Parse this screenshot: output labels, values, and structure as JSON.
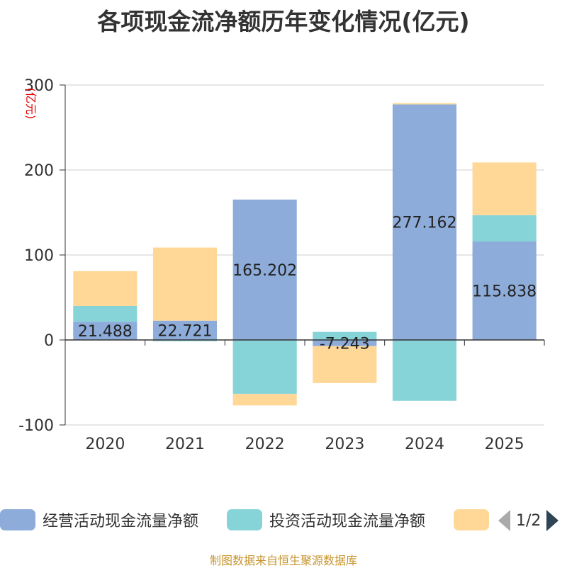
{
  "title": "各项现金流净额历年变化情况(亿元)",
  "source": "制图数据来自恒生聚源数据库",
  "legend_pager": "1/2",
  "chart_data": {
    "type": "bar",
    "stacked": true,
    "title": "各项现金流净额历年变化情况(亿元)",
    "ylabel": "(亿元)",
    "ylim": [
      -100,
      300
    ],
    "yticks": [
      -100,
      0,
      100,
      200,
      300
    ],
    "grid": true,
    "legend_position": "bottom",
    "categories": [
      "2020",
      "2021",
      "2022",
      "2023",
      "2024",
      "2025"
    ],
    "series": [
      {
        "name": "经营活动现金流量净额",
        "color": "#8eacd9",
        "values": [
          21.488,
          22.721,
          165.202,
          -7.243,
          277.162,
          115.838
        ]
      },
      {
        "name": "投资活动现金流量净额",
        "color": "#86d4d8",
        "values": [
          18.5,
          -1.5,
          -63.5,
          9.5,
          -71.5,
          31.0
        ]
      },
      {
        "name": "",
        "color": "#ffd898",
        "values": [
          41.0,
          86.0,
          -13.5,
          -43.5,
          1.5,
          62.0
        ]
      }
    ],
    "data_labels": [
      "21.488",
      "22.721",
      "165.202",
      "-7.243",
      "277.162",
      "115.838"
    ]
  }
}
